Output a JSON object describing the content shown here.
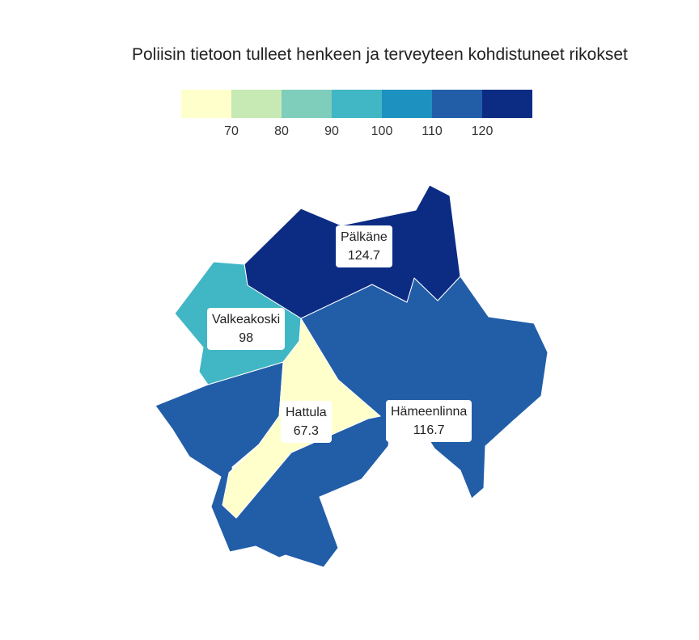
{
  "title": "Poliisin tietoon tulleet henkeen ja terveyteen kohdistuneet rikokset",
  "legend": {
    "colors": [
      "#ffffcc",
      "#c7e9b4",
      "#7fcdbb",
      "#41b6c4",
      "#1d91c0",
      "#225ea8",
      "#0c2c84"
    ],
    "ticks": [
      "70",
      "80",
      "90",
      "100",
      "110",
      "120"
    ]
  },
  "regions": {
    "palkane": {
      "name": "Pälkäne",
      "value": "124.7",
      "color": "#0c2c84"
    },
    "valkeakoski": {
      "name": "Valkeakoski",
      "value": "98",
      "color": "#41b6c4"
    },
    "hattula": {
      "name": "Hattula",
      "value": "67.3",
      "color": "#ffffcc"
    },
    "hameenlinna": {
      "name": "Hämeenlinna",
      "value": "116.7",
      "color": "#225ea8"
    }
  }
}
